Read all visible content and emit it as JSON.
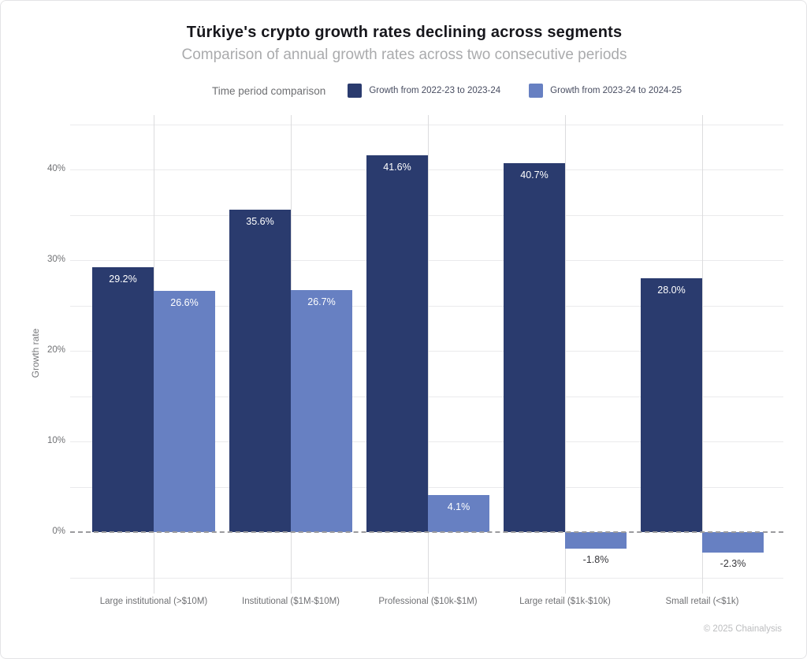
{
  "header": {
    "title": "Türkiye's crypto growth rates declining across segments",
    "subtitle": "Comparison of annual growth rates across two consecutive periods"
  },
  "legend": {
    "title": "Time period comparison",
    "items": [
      {
        "label": "Growth from 2022-23 to 2023-24",
        "color": "#2a3b6e"
      },
      {
        "label": "Growth from 2023-24 to 2024-25",
        "color": "#6780c2"
      }
    ]
  },
  "chart_data": {
    "type": "bar",
    "categories": [
      "Large institutional (>$10M)",
      "Institutional ($1M-$10M)",
      "Professional ($10k-$1M)",
      "Large retail ($1k-$10k)",
      "Small retail (<$1k)"
    ],
    "series": [
      {
        "name": "Growth from 2022-23 to 2023-24",
        "color": "#2a3b6e",
        "values": [
          29.2,
          35.6,
          41.6,
          40.7,
          28.0
        ],
        "labels": [
          "29.2%",
          "35.6%",
          "41.6%",
          "40.7%",
          "28.0%"
        ]
      },
      {
        "name": "Growth from 2023-24 to 2024-25",
        "color": "#6780c2",
        "values": [
          26.6,
          26.7,
          4.1,
          -1.8,
          -2.3
        ],
        "labels": [
          "26.6%",
          "26.7%",
          "4.1%",
          "-1.8%",
          "-2.3%"
        ]
      }
    ],
    "xlabel": "",
    "ylabel": "Growth rate",
    "ylim": [
      -5,
      45
    ],
    "grid_step": 5,
    "yticks": [
      {
        "value": 0,
        "label": "0%"
      },
      {
        "value": 10,
        "label": "10%"
      },
      {
        "value": 20,
        "label": "20%"
      },
      {
        "value": 30,
        "label": "30%"
      },
      {
        "value": 40,
        "label": "40%"
      }
    ],
    "zero_line_style": "dashed",
    "legend_position": "top",
    "grid": true
  },
  "footer": {
    "copyright": "© 2025 Chainalysis"
  }
}
